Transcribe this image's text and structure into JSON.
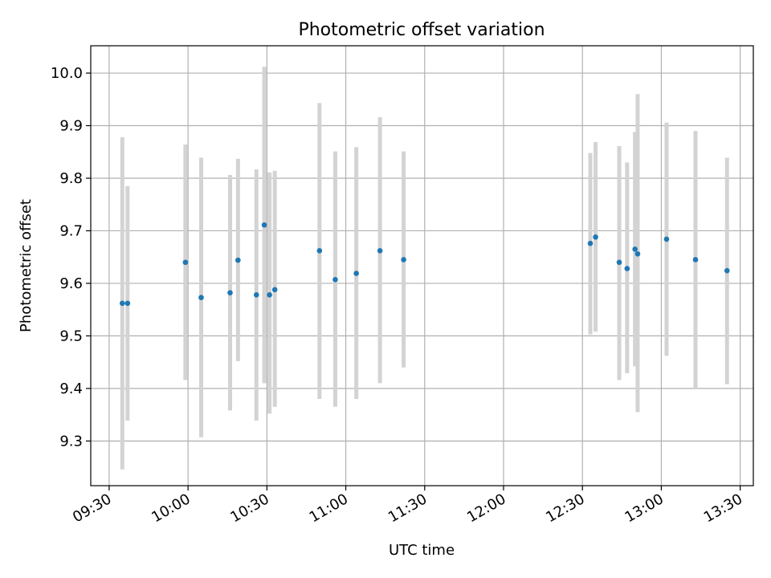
{
  "chart_data": {
    "type": "scatter",
    "title": "Photometric offset variation",
    "xlabel": "UTC time",
    "ylabel": "Photometric offset",
    "x_axis_type": "time",
    "xlim": [
      "09:23",
      "13:35"
    ],
    "ylim": [
      9.215,
      10.052
    ],
    "x_ticks": [
      "09:30",
      "10:00",
      "10:30",
      "11:00",
      "11:30",
      "12:00",
      "12:30",
      "13:00",
      "13:30"
    ],
    "y_ticks": [
      "9.3",
      "9.4",
      "9.5",
      "9.6",
      "9.7",
      "9.8",
      "9.9",
      "10.0"
    ],
    "grid": true,
    "point_color": "#1f77b4",
    "errorbar_color": "#d3d3d3",
    "points": [
      {
        "x": "09:35",
        "y": 9.562,
        "err_low": 9.246,
        "err_high": 9.878
      },
      {
        "x": "09:37",
        "y": 9.562,
        "err_low": 9.339,
        "err_high": 9.785
      },
      {
        "x": "09:59",
        "y": 9.64,
        "err_low": 9.416,
        "err_high": 9.864
      },
      {
        "x": "10:05",
        "y": 9.573,
        "err_low": 9.307,
        "err_high": 9.839
      },
      {
        "x": "10:16",
        "y": 9.582,
        "err_low": 9.358,
        "err_high": 9.806
      },
      {
        "x": "10:19",
        "y": 9.644,
        "err_low": 9.452,
        "err_high": 9.837
      },
      {
        "x": "10:26",
        "y": 9.578,
        "err_low": 9.339,
        "err_high": 9.817
      },
      {
        "x": "10:29",
        "y": 9.711,
        "err_low": 9.41,
        "err_high": 10.012
      },
      {
        "x": "10:31",
        "y": 9.578,
        "err_low": 9.352,
        "err_high": 9.811
      },
      {
        "x": "10:33",
        "y": 9.588,
        "err_low": 9.365,
        "err_high": 9.814
      },
      {
        "x": "10:50",
        "y": 9.662,
        "err_low": 9.38,
        "err_high": 9.943
      },
      {
        "x": "10:56",
        "y": 9.607,
        "err_low": 9.365,
        "err_high": 9.851
      },
      {
        "x": "11:04",
        "y": 9.619,
        "err_low": 9.38,
        "err_high": 9.859
      },
      {
        "x": "11:13",
        "y": 9.662,
        "err_low": 9.41,
        "err_high": 9.916
      },
      {
        "x": "11:22",
        "y": 9.645,
        "err_low": 9.44,
        "err_high": 9.851
      },
      {
        "x": "12:33",
        "y": 9.676,
        "err_low": 9.503,
        "err_high": 9.848
      },
      {
        "x": "12:35",
        "y": 9.688,
        "err_low": 9.508,
        "err_high": 9.869
      },
      {
        "x": "12:44",
        "y": 9.64,
        "err_low": 9.416,
        "err_high": 9.861
      },
      {
        "x": "12:47",
        "y": 9.628,
        "err_low": 9.429,
        "err_high": 9.83
      },
      {
        "x": "12:50",
        "y": 9.665,
        "err_low": 9.442,
        "err_high": 9.888
      },
      {
        "x": "12:51",
        "y": 9.656,
        "err_low": 9.355,
        "err_high": 9.96
      },
      {
        "x": "13:02",
        "y": 9.684,
        "err_low": 9.462,
        "err_high": 9.906
      },
      {
        "x": "13:13",
        "y": 9.645,
        "err_low": 9.4,
        "err_high": 9.89
      },
      {
        "x": "13:25",
        "y": 9.624,
        "err_low": 9.408,
        "err_high": 9.839
      }
    ]
  }
}
